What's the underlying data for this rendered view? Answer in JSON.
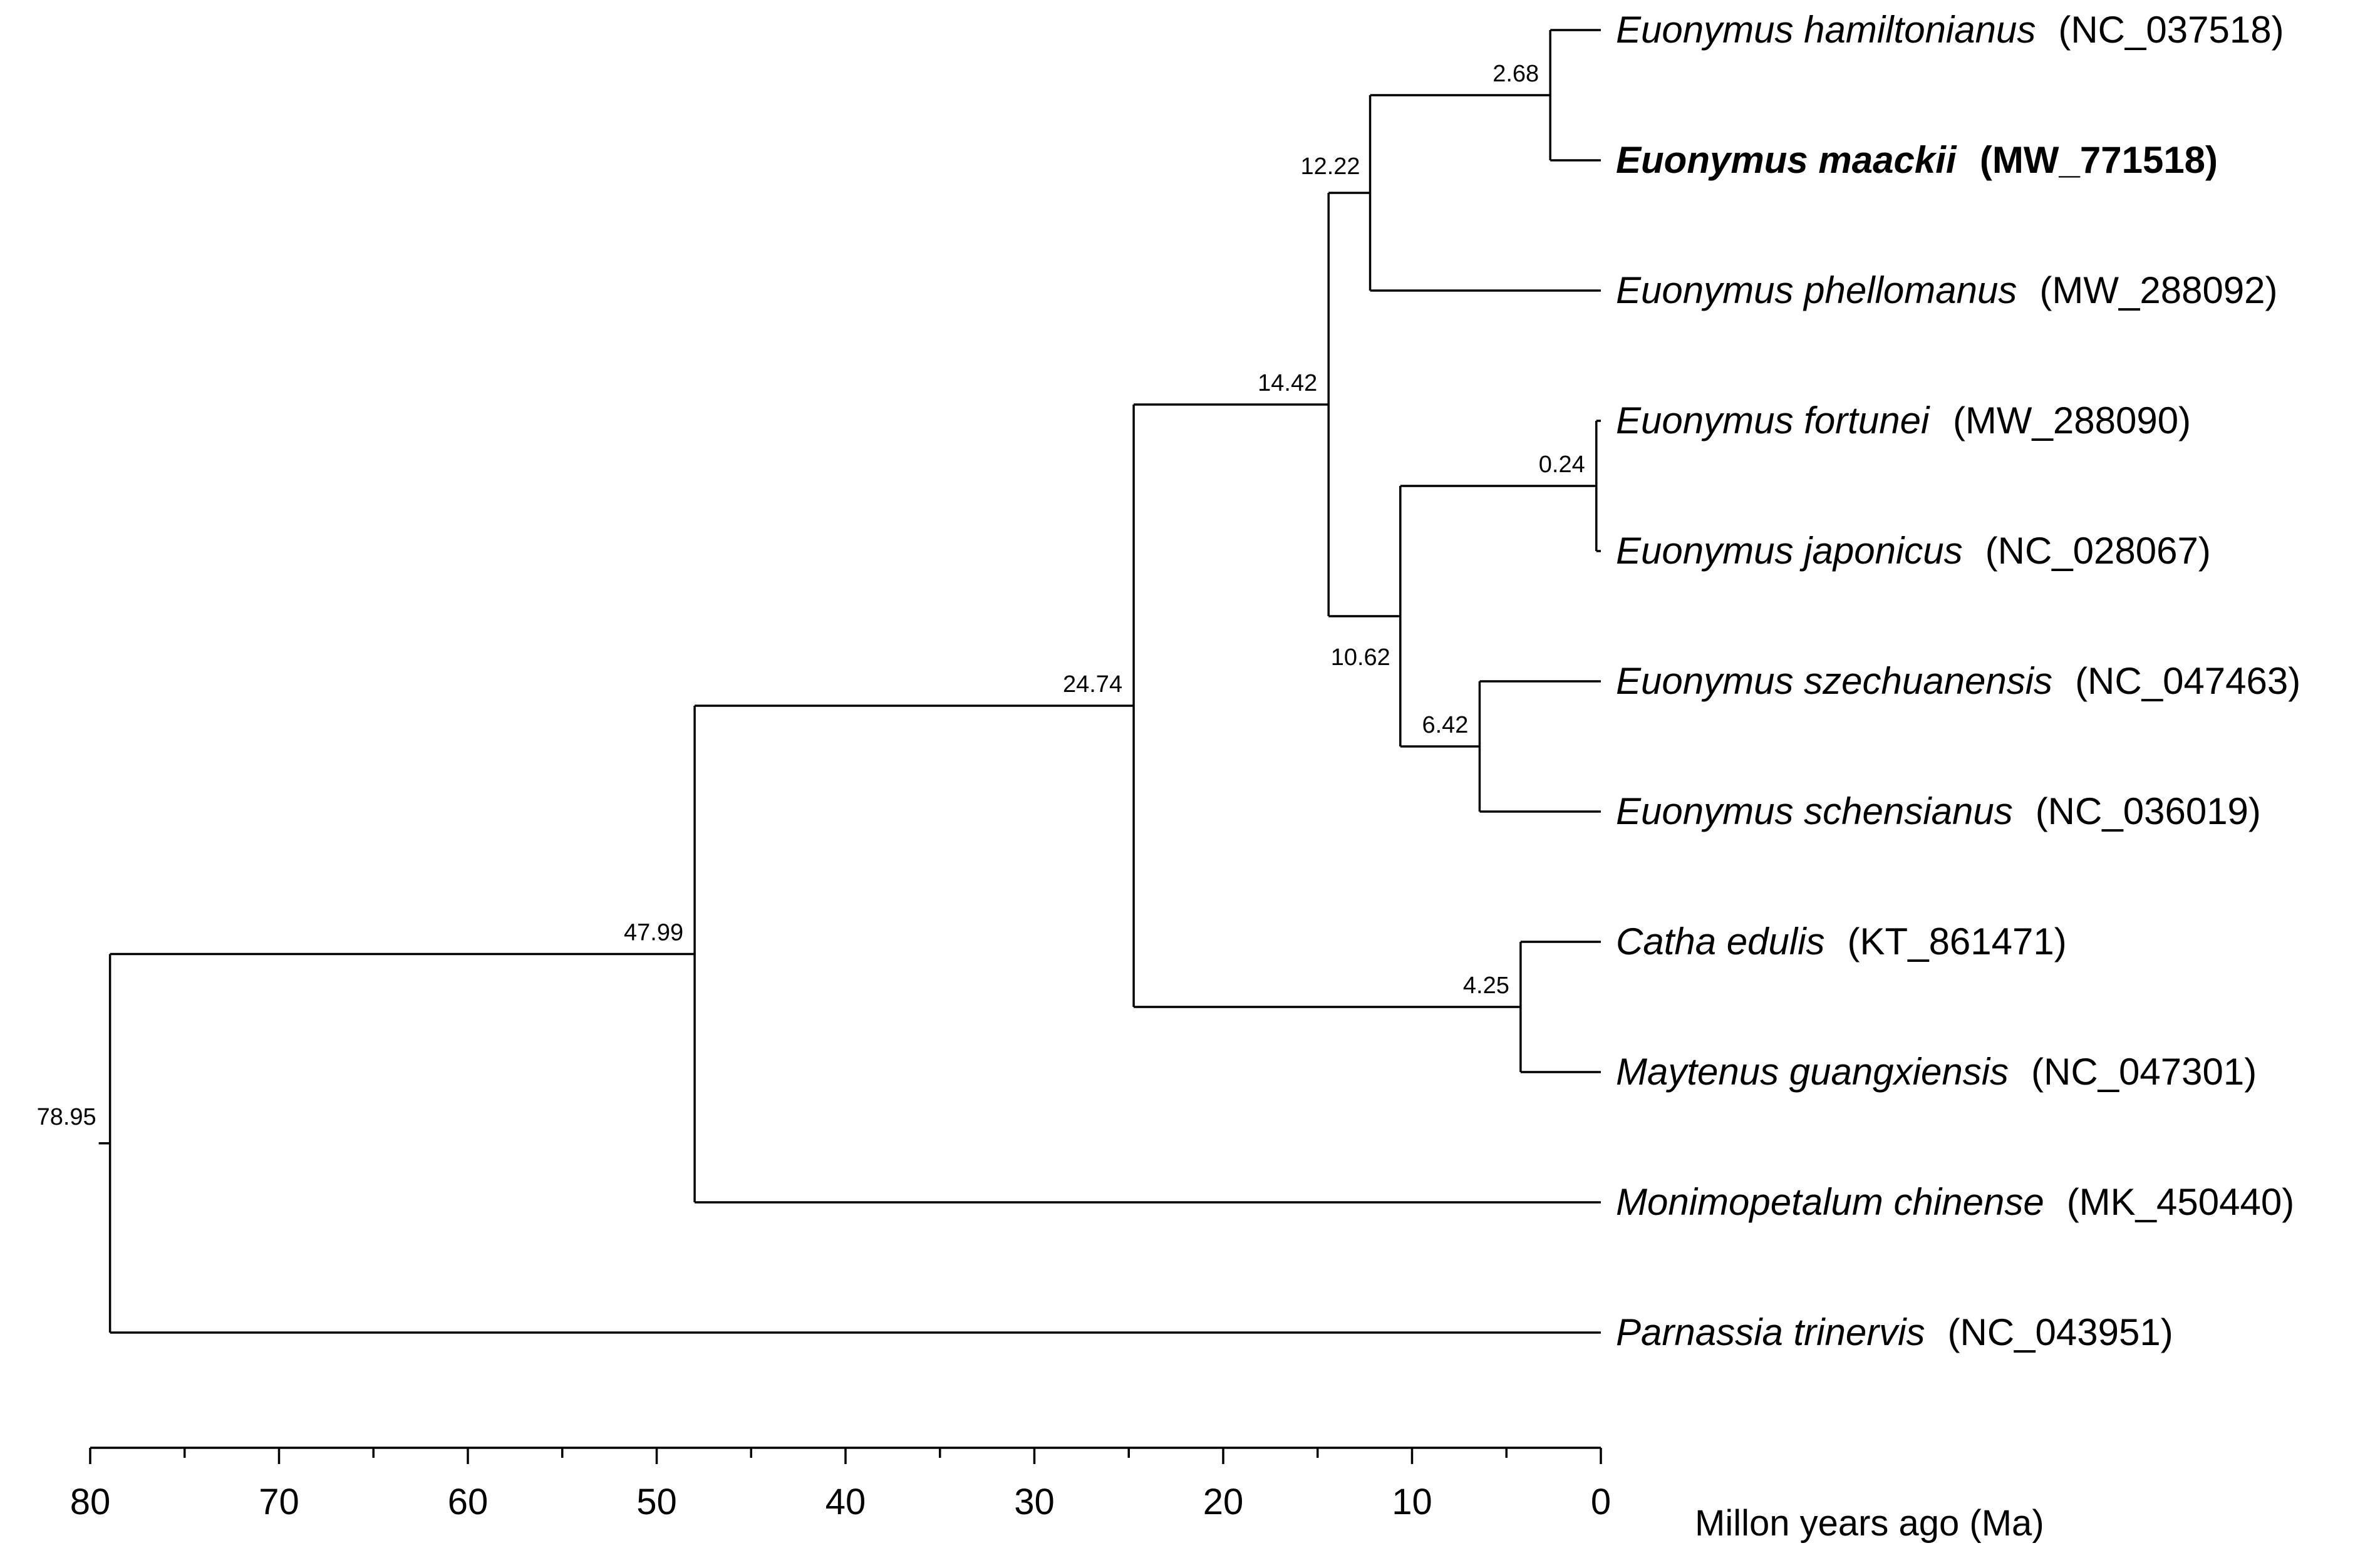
{
  "figure": {
    "axis": {
      "title": "Millon years ago (Ma)",
      "ticks": [
        80,
        70,
        60,
        50,
        40,
        30,
        20,
        10,
        0
      ],
      "minor_step": 5
    },
    "root_age": 78.95,
    "taxa": [
      {
        "id": "t1",
        "name": "Euonymus hamiltonianus",
        "accession": "(NC_037518)",
        "bold": false
      },
      {
        "id": "t2",
        "name": "Euonymus maackii",
        "accession": "(MW_771518)",
        "bold": true
      },
      {
        "id": "t3",
        "name": "Euonymus phellomanus",
        "accession": "(MW_288092)",
        "bold": false
      },
      {
        "id": "t4",
        "name": "Euonymus fortunei",
        "accession": "(MW_288090)",
        "bold": false
      },
      {
        "id": "t5",
        "name": "Euonymus japonicus",
        "accession": "(NC_028067)",
        "bold": false
      },
      {
        "id": "t6",
        "name": "Euonymus szechuanensis",
        "accession": "(NC_047463)",
        "bold": false
      },
      {
        "id": "t7",
        "name": "Euonymus schensianus",
        "accession": "(NC_036019)",
        "bold": false
      },
      {
        "id": "t8",
        "name": "Catha edulis",
        "accession": "(KT_861471)",
        "bold": false
      },
      {
        "id": "t9",
        "name": "Maytenus guangxiensis",
        "accession": "(NC_047301)",
        "bold": false
      },
      {
        "id": "t10",
        "name": "Monimopetalum chinense",
        "accession": "(MK_450440)",
        "bold": false
      },
      {
        "id": "t11",
        "name": "Parnassia trinervis",
        "accession": "(NC_043951)",
        "bold": false
      }
    ],
    "nodes": [
      {
        "id": "n_root",
        "age": 78.95,
        "label": "78.95",
        "children": [
          "n_4799",
          "t11"
        ]
      },
      {
        "id": "n_4799",
        "age": 47.99,
        "label": "47.99",
        "children": [
          "n_2474",
          "t10"
        ]
      },
      {
        "id": "n_2474",
        "age": 24.74,
        "label": "24.74",
        "children": [
          "n_1442",
          "n_425"
        ]
      },
      {
        "id": "n_1442",
        "age": 14.42,
        "label": "14.42",
        "children": [
          "n_1222",
          "n_1062"
        ]
      },
      {
        "id": "n_1222",
        "age": 12.22,
        "label": "12.22",
        "children": [
          "n_268",
          "t3"
        ]
      },
      {
        "id": "n_268",
        "age": 2.68,
        "label": "2.68",
        "children": [
          "t1",
          "t2"
        ]
      },
      {
        "id": "n_1062",
        "age": 10.62,
        "label": "10.62",
        "children": [
          "n_024",
          "n_642"
        ]
      },
      {
        "id": "n_024",
        "age": 0.24,
        "label": "0.24",
        "children": [
          "t4",
          "t5"
        ]
      },
      {
        "id": "n_642",
        "age": 6.42,
        "label": "6.42",
        "children": [
          "t6",
          "t7"
        ]
      },
      {
        "id": "n_425",
        "age": 4.25,
        "label": "4.25",
        "children": [
          "t8",
          "t9"
        ]
      }
    ]
  }
}
